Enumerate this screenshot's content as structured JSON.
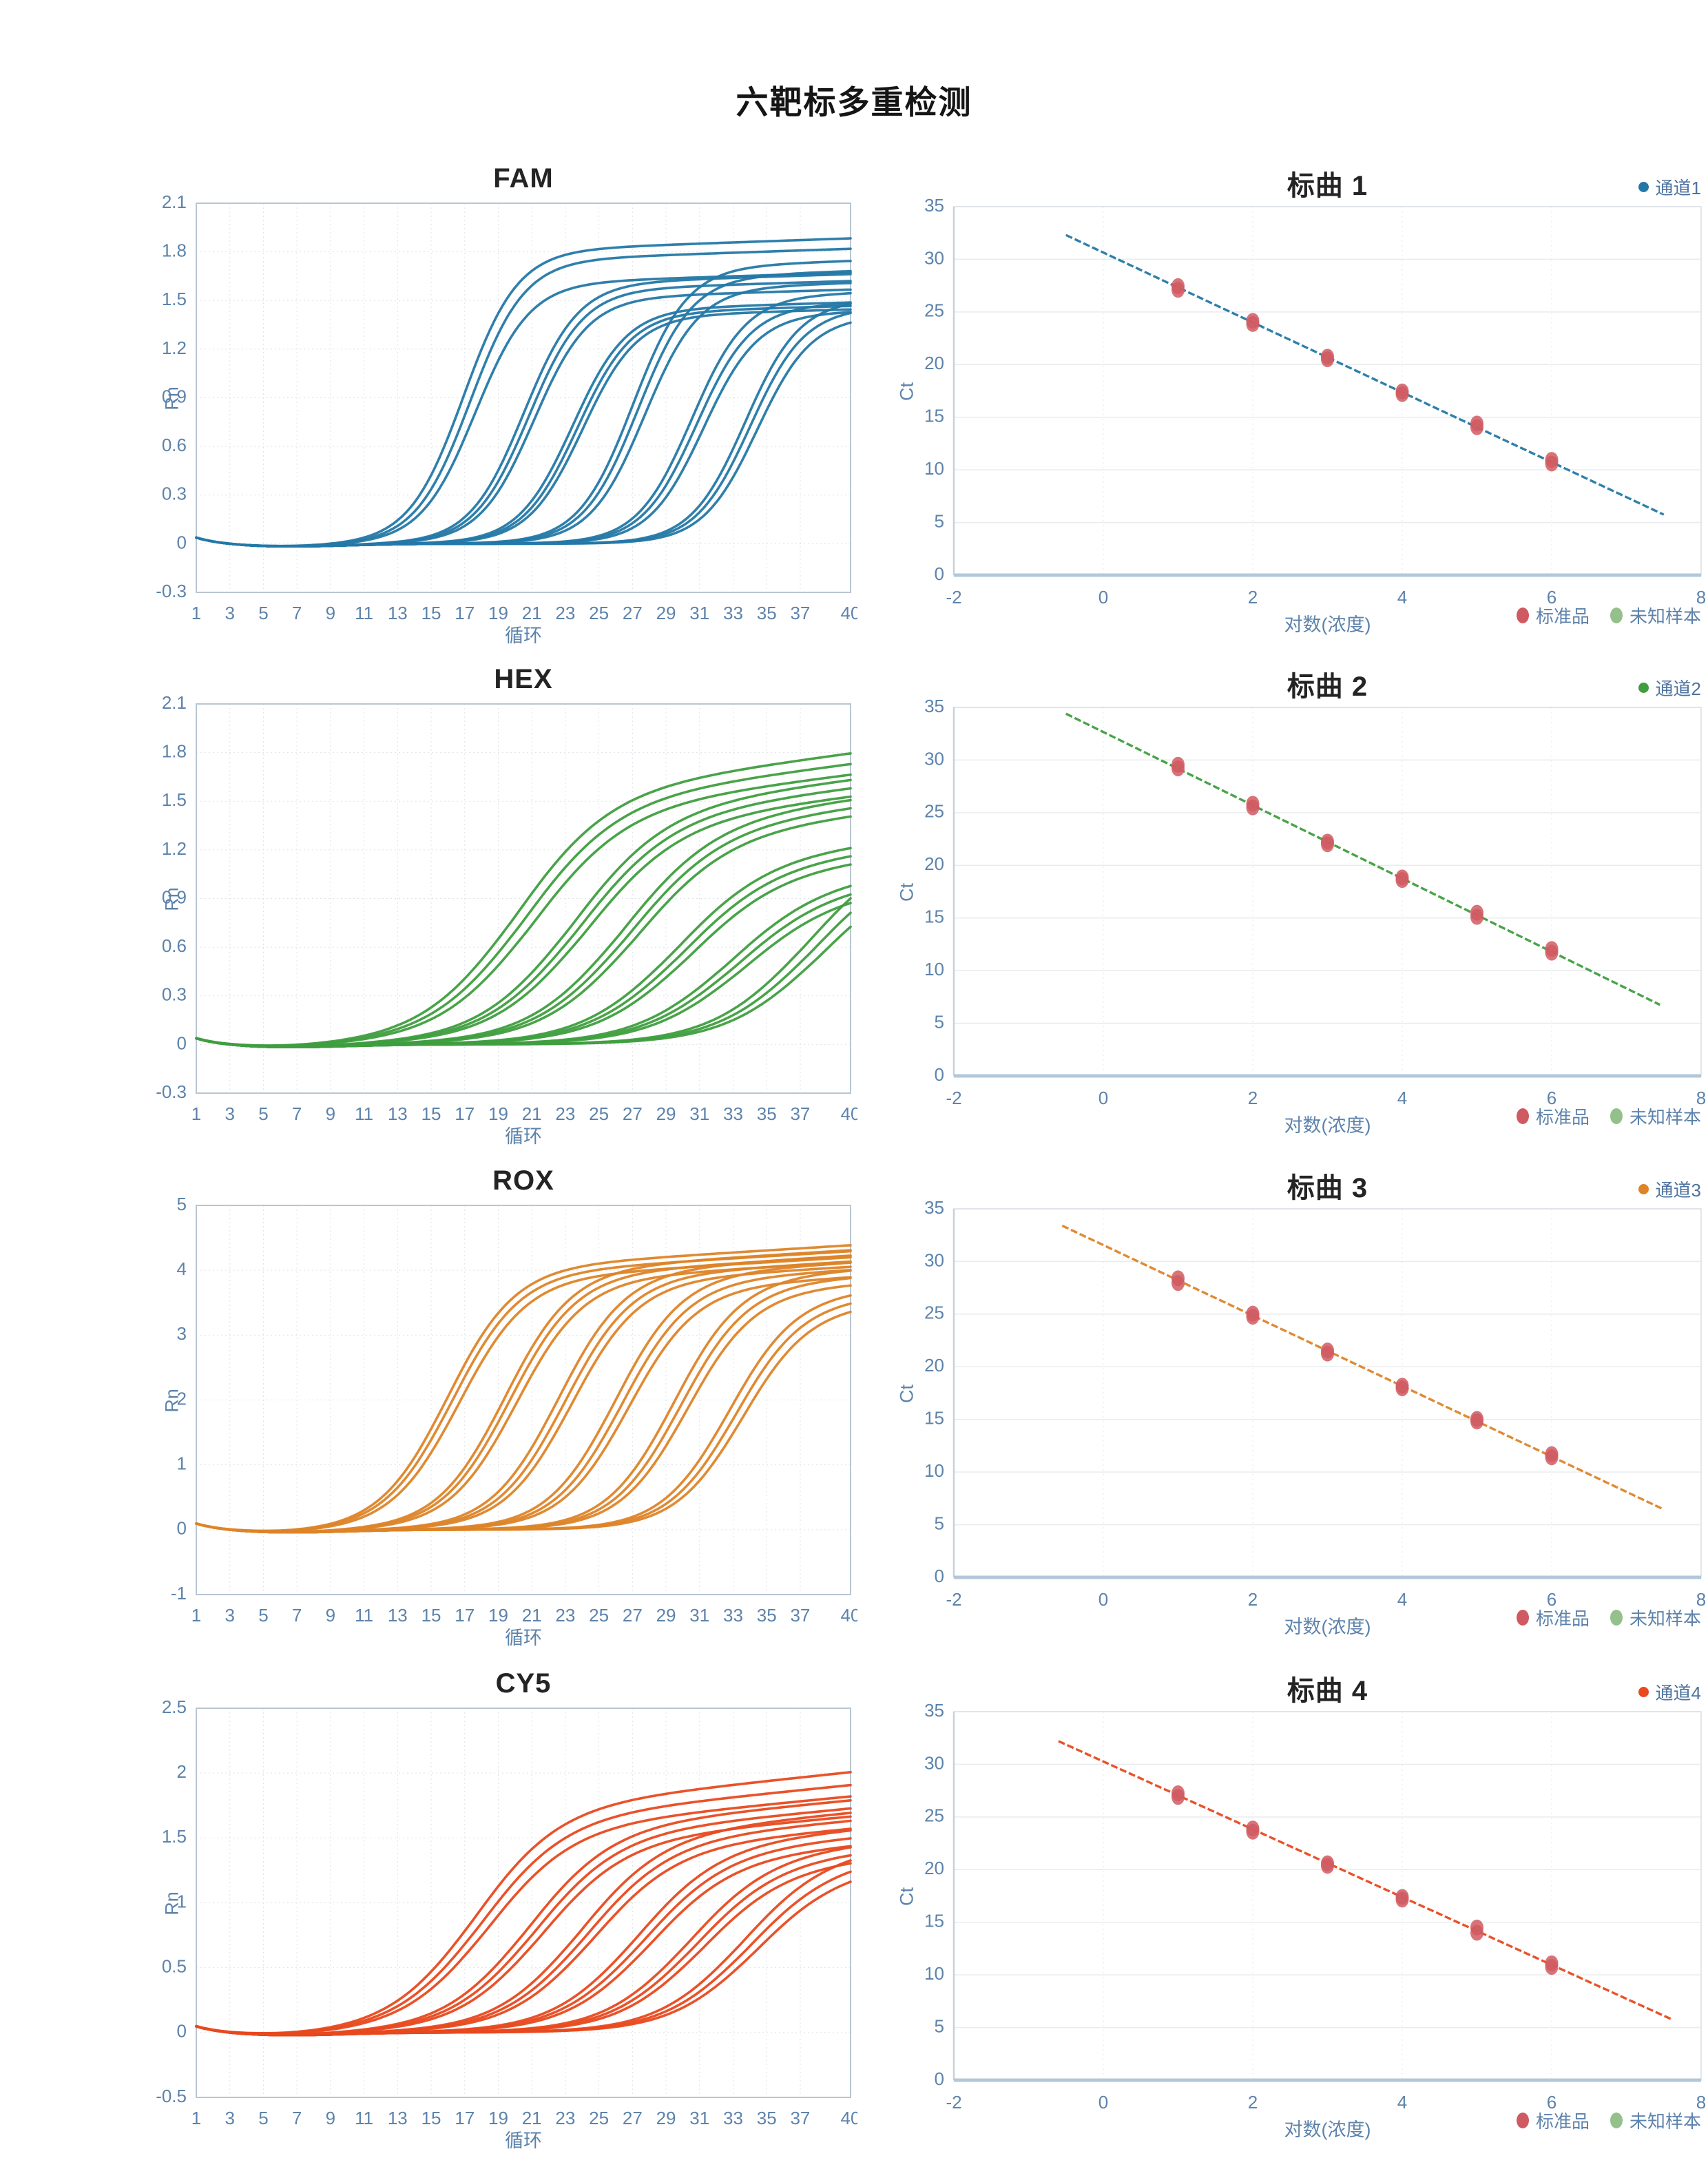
{
  "page": {
    "title": "六靶标多重检测"
  },
  "chart_data": {
    "amplification": [
      {
        "type": "line",
        "title": "FAM",
        "xlabel": "循环",
        "ylabel": "Rn",
        "color": "#2478a6",
        "xlim": [
          1,
          40
        ],
        "ylim": [
          -0.3,
          2.1
        ],
        "xticks": [
          1,
          3,
          5,
          7,
          9,
          11,
          13,
          15,
          17,
          19,
          21,
          23,
          25,
          27,
          29,
          31,
          33,
          35,
          37,
          40
        ],
        "yticks": [
          2.1,
          1.8,
          1.5,
          1.2,
          0.9,
          0.6,
          0.3,
          0,
          -0.3
        ],
        "sigmoid_k": 0.62,
        "drift": 0.002,
        "groups": [
          {
            "ct_mids": [
              16.9,
              17.3,
              17.6
            ],
            "plateaus": [
              1.8,
              1.74,
              1.6
            ]
          },
          {
            "ct_mids": [
              20.5,
              20.8,
              21.1
            ],
            "plateaus": [
              1.6,
              1.56,
              1.51
            ]
          },
          {
            "ct_mids": [
              23.4,
              23.7,
              24.0
            ],
            "plateaus": [
              1.44,
              1.42,
              1.4
            ]
          },
          {
            "ct_mids": [
              27.0,
              27.3,
              27.7
            ],
            "plateaus": [
              1.7,
              1.64,
              1.57
            ]
          },
          {
            "ct_mids": [
              30.5,
              30.8,
              31.2
            ],
            "plateaus": [
              1.52,
              1.46,
              1.41
            ]
          },
          {
            "ct_mids": [
              33.7,
              34.0,
              34.4
            ],
            "plateaus": [
              1.49,
              1.44,
              1.39
            ]
          }
        ]
      },
      {
        "type": "line",
        "title": "HEX",
        "xlabel": "循环",
        "ylabel": "Rn",
        "color": "#3f9e3f",
        "xlim": [
          1,
          40
        ],
        "ylim": [
          -0.3,
          2.1
        ],
        "xticks": [
          1,
          3,
          5,
          7,
          9,
          11,
          13,
          15,
          17,
          19,
          21,
          23,
          25,
          27,
          29,
          31,
          33,
          35,
          37,
          40
        ],
        "yticks": [
          2.1,
          1.8,
          1.5,
          1.2,
          0.9,
          0.6,
          0.3,
          0,
          -0.3
        ],
        "sigmoid_k": 0.36,
        "drift": 0.009,
        "groups": [
          {
            "ct_mids": [
              19.8,
              20.3,
              20.8
            ],
            "plateaus": [
              1.52,
              1.47,
              1.42
            ]
          },
          {
            "ct_mids": [
              23.2,
              23.6,
              24.0
            ],
            "plateaus": [
              1.42,
              1.38,
              1.34
            ]
          },
          {
            "ct_mids": [
              26.2,
              26.6,
              27.0
            ],
            "plateaus": [
              1.35,
              1.31,
              1.27
            ]
          },
          {
            "ct_mids": [
              29.4,
              29.8,
              30.2
            ],
            "plateaus": [
              1.13,
              1.09,
              1.05
            ]
          },
          {
            "ct_mids": [
              32.6,
              33.0,
              33.4
            ],
            "plateaus": [
              0.98,
              0.94,
              0.9
            ]
          },
          {
            "ct_mids": [
              37.2,
              37.6,
              38.0
            ],
            "plateaus": [
              1.2,
              1.13,
              1.06
            ]
          }
        ]
      },
      {
        "type": "line",
        "title": "ROX",
        "xlabel": "循环",
        "ylabel": "Rn",
        "color": "#dd8428",
        "xlim": [
          1,
          40
        ],
        "ylim": [
          -1,
          5
        ],
        "xticks": [
          1,
          3,
          5,
          7,
          9,
          11,
          13,
          15,
          17,
          19,
          21,
          23,
          25,
          27,
          29,
          31,
          33,
          35,
          37,
          40
        ],
        "yticks": [
          5,
          4,
          3,
          2,
          1,
          0,
          -1
        ],
        "sigmoid_k": 0.5,
        "drift": 0.004,
        "groups": [
          {
            "ct_mids": [
              15.9,
              16.2,
              16.6
            ],
            "plateaus": [
              4.0,
              3.92,
              3.84
            ]
          },
          {
            "ct_mids": [
              19.3,
              19.6,
              20.0
            ],
            "plateaus": [
              3.98,
              3.9,
              3.82
            ]
          },
          {
            "ct_mids": [
              22.5,
              22.9,
              23.3
            ],
            "plateaus": [
              3.95,
              3.87,
              3.8
            ]
          },
          {
            "ct_mids": [
              25.9,
              26.3,
              26.7
            ],
            "plateaus": [
              3.9,
              3.8,
              3.7
            ]
          },
          {
            "ct_mids": [
              29.4,
              29.8,
              30.2
            ],
            "plateaus": [
              3.85,
              3.75,
              3.65
            ]
          },
          {
            "ct_mids": [
              32.7,
              33.1,
              33.5
            ],
            "plateaus": [
              3.6,
              3.5,
              3.4
            ]
          }
        ]
      },
      {
        "type": "line",
        "title": "CY5",
        "xlabel": "循环",
        "ylabel": "Rn",
        "color": "#e8491e",
        "xlim": [
          1,
          40
        ],
        "ylim": [
          -0.5,
          2.5
        ],
        "xticks": [
          1,
          3,
          5,
          7,
          9,
          11,
          13,
          15,
          17,
          19,
          21,
          23,
          25,
          27,
          29,
          31,
          33,
          35,
          37,
          40
        ],
        "yticks": [
          2.5,
          2,
          1.5,
          1,
          0.5,
          0,
          -0.5
        ],
        "sigmoid_k": 0.4,
        "drift": 0.008,
        "groups": [
          {
            "ct_mids": [
              17.4,
              17.8,
              18.2
            ],
            "plateaus": [
              1.7,
              1.62,
              1.55
            ]
          },
          {
            "ct_mids": [
              20.6,
              21.0,
              21.4
            ],
            "plateaus": [
              1.55,
              1.5,
              1.45
            ]
          },
          {
            "ct_mids": [
              23.7,
              24.1,
              24.5
            ],
            "plateaus": [
              1.5,
              1.45,
              1.4
            ]
          },
          {
            "ct_mids": [
              27.1,
              27.5,
              27.9
            ],
            "plateaus": [
              1.42,
              1.37,
              1.32
            ]
          },
          {
            "ct_mids": [
              30.2,
              30.6,
              31.0
            ],
            "plateaus": [
              1.35,
              1.3,
              1.25
            ]
          },
          {
            "ct_mids": [
              33.4,
              33.8,
              34.2
            ],
            "plateaus": [
              1.35,
              1.28,
              1.22
            ]
          }
        ]
      }
    ],
    "standard_curves": [
      {
        "type": "scatter",
        "title": "标曲  1",
        "channel_label": "通道1",
        "color": "#2478a6",
        "xlabel": "对数(浓度)",
        "ylabel": "Ct",
        "xlim": [
          -2,
          8
        ],
        "ylim": [
          0,
          35
        ],
        "xticks": [
          -2,
          0,
          2,
          4,
          6,
          8
        ],
        "yticks": [
          0,
          5,
          10,
          15,
          20,
          25,
          30,
          35
        ],
        "fit_line": {
          "x1": -0.5,
          "y1": 32.3,
          "x2": 7.5,
          "y2": 5.75
        },
        "points": [
          [
            1,
            27.45
          ],
          [
            1,
            27.1
          ],
          [
            2,
            24.15
          ],
          [
            2,
            23.85
          ],
          [
            3,
            20.75
          ],
          [
            3,
            20.5
          ],
          [
            4,
            17.45
          ],
          [
            4,
            17.2
          ],
          [
            5,
            14.4
          ],
          [
            5,
            14.05
          ],
          [
            6,
            10.95
          ],
          [
            6,
            10.6
          ]
        ],
        "point_color": "#d05a62",
        "legend": {
          "standard": "标准品",
          "unknown": "未知样本",
          "unknown_color": "#93c08b"
        }
      },
      {
        "type": "scatter",
        "title": "标曲  2",
        "channel_label": "通道2",
        "color": "#3f9e3f",
        "xlabel": "对数(浓度)",
        "ylabel": "Ct",
        "xlim": [
          -2,
          8
        ],
        "ylim": [
          0,
          35
        ],
        "xticks": [
          -2,
          0,
          2,
          4,
          6,
          8
        ],
        "yticks": [
          0,
          5,
          10,
          15,
          20,
          25,
          30,
          35
        ],
        "fit_line": {
          "x1": -0.5,
          "y1": 34.4,
          "x2": 7.45,
          "y2": 6.75
        },
        "points": [
          [
            1,
            29.55
          ],
          [
            1,
            29.2
          ],
          [
            2,
            25.85
          ],
          [
            2,
            25.5
          ],
          [
            3,
            22.25
          ],
          [
            3,
            22.0
          ],
          [
            4,
            18.85
          ],
          [
            4,
            18.6
          ],
          [
            5,
            15.5
          ],
          [
            5,
            15.1
          ],
          [
            6,
            12.05
          ],
          [
            6,
            11.7
          ]
        ],
        "point_color": "#d05a62",
        "legend": {
          "standard": "标准品",
          "unknown": "未知样本",
          "unknown_color": "#93c08b"
        }
      },
      {
        "type": "scatter",
        "title": "标曲  3",
        "channel_label": "通道3",
        "color": "#dd8428",
        "xlabel": "对数(浓度)",
        "ylabel": "Ct",
        "xlim": [
          -2,
          8
        ],
        "ylim": [
          0,
          35
        ],
        "xticks": [
          -2,
          0,
          2,
          4,
          6,
          8
        ],
        "yticks": [
          0,
          5,
          10,
          15,
          20,
          25,
          30,
          35
        ],
        "fit_line": {
          "x1": -0.55,
          "y1": 33.4,
          "x2": 7.5,
          "y2": 6.45
        },
        "points": [
          [
            1,
            28.4
          ],
          [
            1,
            27.95
          ],
          [
            2,
            25.05
          ],
          [
            2,
            24.75
          ],
          [
            3,
            21.55
          ],
          [
            3,
            21.25
          ],
          [
            4,
            18.2
          ],
          [
            4,
            17.95
          ],
          [
            5,
            15.05
          ],
          [
            5,
            14.8
          ],
          [
            6,
            11.7
          ],
          [
            6,
            11.4
          ]
        ],
        "point_color": "#d05a62",
        "legend": {
          "standard": "标准品",
          "unknown": "未知样本",
          "unknown_color": "#93c08b"
        }
      },
      {
        "type": "scatter",
        "title": "标曲 4",
        "channel_label": "通道4",
        "color": "#e8491e",
        "xlabel": "对数(浓度)",
        "ylabel": "Ct",
        "xlim": [
          -2,
          8
        ],
        "ylim": [
          0,
          35
        ],
        "xticks": [
          -2,
          0,
          2,
          4,
          6,
          8
        ],
        "yticks": [
          0,
          5,
          10,
          15,
          20,
          25,
          30,
          35
        ],
        "fit_line": {
          "x1": -0.6,
          "y1": 32.2,
          "x2": 7.6,
          "y2": 5.8
        },
        "points": [
          [
            1,
            27.25
          ],
          [
            1,
            26.9
          ],
          [
            2,
            23.9
          ],
          [
            2,
            23.6
          ],
          [
            3,
            20.6
          ],
          [
            3,
            20.35
          ],
          [
            4,
            17.4
          ],
          [
            4,
            17.15
          ],
          [
            5,
            14.5
          ],
          [
            5,
            14.0
          ],
          [
            6,
            11.1
          ],
          [
            6,
            10.75
          ]
        ],
        "point_color": "#d05a62",
        "legend": {
          "standard": "标准品",
          "unknown": "未知样本",
          "unknown_color": "#93c08b"
        }
      }
    ]
  }
}
